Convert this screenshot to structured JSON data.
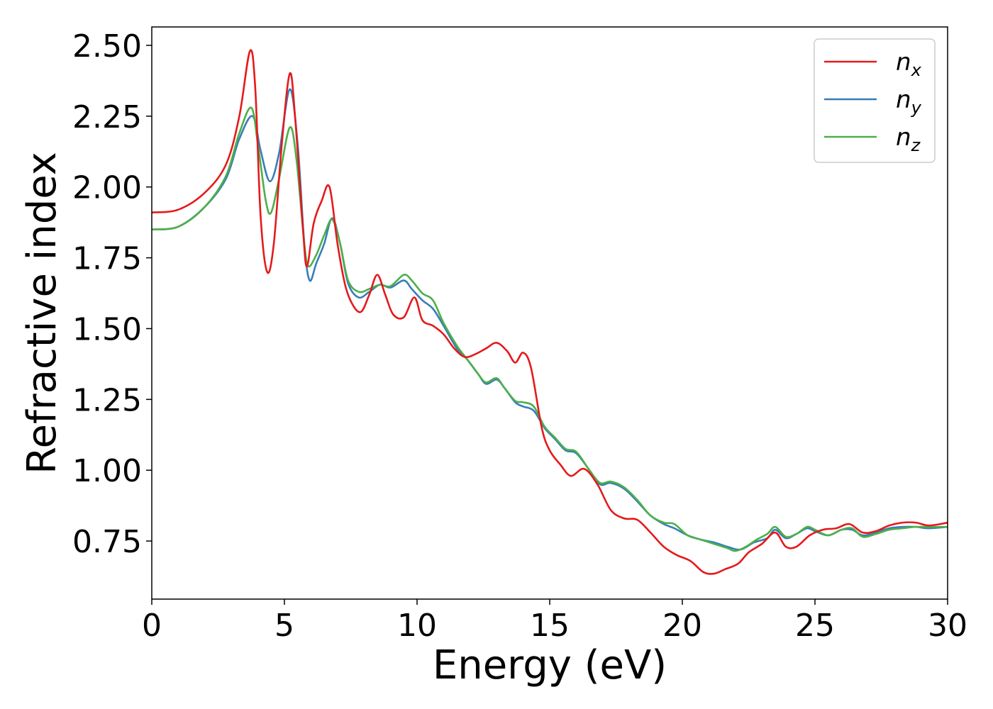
{
  "chart_data": {
    "type": "line",
    "xlabel": "Energy (eV)",
    "ylabel": "Refractive index",
    "xlim": [
      0,
      30
    ],
    "ylim": [
      0.545,
      2.565
    ],
    "xticks": [
      0,
      5,
      10,
      15,
      20,
      25,
      30
    ],
    "xtick_labels": [
      "0",
      "5",
      "10",
      "15",
      "20",
      "25",
      "30"
    ],
    "yticks": [
      0.75,
      1.0,
      1.25,
      1.5,
      1.75,
      2.0,
      2.25,
      2.5
    ],
    "ytick_labels": [
      "0.75",
      "1.00",
      "1.25",
      "1.50",
      "1.75",
      "2.00",
      "2.25",
      "2.50"
    ],
    "grid": false,
    "legend_position": "top-right",
    "series": [
      {
        "name": "n_x",
        "label_main": "n",
        "label_sub": "x",
        "color": "#e41a1c",
        "points": [
          [
            0,
            1.91
          ],
          [
            1,
            1.92
          ],
          [
            2,
            1.98
          ],
          [
            2.8,
            2.08
          ],
          [
            3.3,
            2.25
          ],
          [
            3.7,
            2.48
          ],
          [
            3.9,
            2.35
          ],
          [
            4.1,
            1.9
          ],
          [
            4.35,
            1.7
          ],
          [
            4.6,
            1.8
          ],
          [
            4.9,
            2.15
          ],
          [
            5.2,
            2.4
          ],
          [
            5.4,
            2.25
          ],
          [
            5.7,
            1.85
          ],
          [
            5.85,
            1.72
          ],
          [
            6.1,
            1.87
          ],
          [
            6.4,
            1.95
          ],
          [
            6.7,
            2.0
          ],
          [
            7.0,
            1.8
          ],
          [
            7.3,
            1.65
          ],
          [
            7.6,
            1.58
          ],
          [
            7.9,
            1.56
          ],
          [
            8.2,
            1.62
          ],
          [
            8.5,
            1.69
          ],
          [
            8.8,
            1.62
          ],
          [
            9.1,
            1.55
          ],
          [
            9.5,
            1.54
          ],
          [
            9.9,
            1.61
          ],
          [
            10.2,
            1.53
          ],
          [
            10.6,
            1.51
          ],
          [
            11.0,
            1.48
          ],
          [
            11.4,
            1.43
          ],
          [
            11.8,
            1.4
          ],
          [
            12.2,
            1.41
          ],
          [
            12.6,
            1.43
          ],
          [
            13.0,
            1.45
          ],
          [
            13.4,
            1.42
          ],
          [
            13.7,
            1.38
          ],
          [
            14.0,
            1.415
          ],
          [
            14.3,
            1.36
          ],
          [
            14.7,
            1.15
          ],
          [
            15.0,
            1.07
          ],
          [
            15.4,
            1.02
          ],
          [
            15.8,
            0.98
          ],
          [
            16.3,
            1.005
          ],
          [
            16.8,
            0.95
          ],
          [
            17.3,
            0.86
          ],
          [
            17.8,
            0.83
          ],
          [
            18.3,
            0.825
          ],
          [
            18.8,
            0.78
          ],
          [
            19.3,
            0.73
          ],
          [
            19.8,
            0.7
          ],
          [
            20.3,
            0.68
          ],
          [
            20.8,
            0.64
          ],
          [
            21.2,
            0.635
          ],
          [
            21.6,
            0.65
          ],
          [
            22.1,
            0.67
          ],
          [
            22.5,
            0.71
          ],
          [
            23.0,
            0.74
          ],
          [
            23.5,
            0.78
          ],
          [
            23.9,
            0.73
          ],
          [
            24.3,
            0.73
          ],
          [
            24.8,
            0.77
          ],
          [
            25.3,
            0.79
          ],
          [
            25.8,
            0.795
          ],
          [
            26.3,
            0.81
          ],
          [
            26.8,
            0.78
          ],
          [
            27.3,
            0.785
          ],
          [
            27.8,
            0.805
          ],
          [
            28.3,
            0.815
          ],
          [
            28.8,
            0.815
          ],
          [
            29.3,
            0.805
          ],
          [
            30,
            0.815
          ]
        ]
      },
      {
        "name": "n_y",
        "label_main": "n",
        "label_sub": "y",
        "color": "#377eb8",
        "points": [
          [
            0,
            1.85
          ],
          [
            1,
            1.86
          ],
          [
            2,
            1.93
          ],
          [
            2.8,
            2.03
          ],
          [
            3.3,
            2.17
          ],
          [
            3.8,
            2.25
          ],
          [
            4.1,
            2.13
          ],
          [
            4.45,
            2.02
          ],
          [
            4.8,
            2.12
          ],
          [
            5.2,
            2.345
          ],
          [
            5.5,
            2.15
          ],
          [
            5.75,
            1.8
          ],
          [
            5.95,
            1.67
          ],
          [
            6.2,
            1.73
          ],
          [
            6.5,
            1.8
          ],
          [
            6.8,
            1.89
          ],
          [
            7.1,
            1.8
          ],
          [
            7.4,
            1.66
          ],
          [
            7.8,
            1.61
          ],
          [
            8.2,
            1.63
          ],
          [
            8.6,
            1.655
          ],
          [
            9.0,
            1.645
          ],
          [
            9.5,
            1.67
          ],
          [
            9.8,
            1.64
          ],
          [
            10.2,
            1.6
          ],
          [
            10.6,
            1.57
          ],
          [
            11.0,
            1.51
          ],
          [
            11.5,
            1.43
          ],
          [
            11.9,
            1.39
          ],
          [
            12.3,
            1.34
          ],
          [
            12.6,
            1.305
          ],
          [
            13.0,
            1.32
          ],
          [
            13.3,
            1.29
          ],
          [
            13.7,
            1.24
          ],
          [
            14.0,
            1.225
          ],
          [
            14.4,
            1.21
          ],
          [
            14.8,
            1.15
          ],
          [
            15.2,
            1.11
          ],
          [
            15.6,
            1.07
          ],
          [
            16.0,
            1.06
          ],
          [
            16.5,
            1.0
          ],
          [
            16.9,
            0.95
          ],
          [
            17.3,
            0.955
          ],
          [
            17.8,
            0.935
          ],
          [
            18.3,
            0.89
          ],
          [
            18.8,
            0.84
          ],
          [
            19.3,
            0.81
          ],
          [
            19.7,
            0.795
          ],
          [
            20.2,
            0.77
          ],
          [
            20.7,
            0.755
          ],
          [
            21.2,
            0.745
          ],
          [
            21.7,
            0.73
          ],
          [
            22.2,
            0.72
          ],
          [
            22.7,
            0.745
          ],
          [
            23.2,
            0.76
          ],
          [
            23.5,
            0.79
          ],
          [
            23.9,
            0.76
          ],
          [
            24.3,
            0.775
          ],
          [
            24.7,
            0.795
          ],
          [
            25.0,
            0.785
          ],
          [
            25.5,
            0.77
          ],
          [
            26.0,
            0.79
          ],
          [
            26.4,
            0.79
          ],
          [
            26.8,
            0.77
          ],
          [
            27.3,
            0.78
          ],
          [
            27.8,
            0.795
          ],
          [
            28.3,
            0.8
          ],
          [
            28.8,
            0.8
          ],
          [
            29.3,
            0.795
          ],
          [
            30,
            0.8
          ]
        ]
      },
      {
        "name": "n_z",
        "label_main": "n",
        "label_sub": "z",
        "color": "#4daf4a",
        "points": [
          [
            0,
            1.85
          ],
          [
            1,
            1.86
          ],
          [
            2,
            1.93
          ],
          [
            2.8,
            2.04
          ],
          [
            3.3,
            2.19
          ],
          [
            3.75,
            2.28
          ],
          [
            4.0,
            2.15
          ],
          [
            4.3,
            1.95
          ],
          [
            4.5,
            1.91
          ],
          [
            4.8,
            2.03
          ],
          [
            5.2,
            2.21
          ],
          [
            5.45,
            2.1
          ],
          [
            5.75,
            1.8
          ],
          [
            5.9,
            1.72
          ],
          [
            6.2,
            1.76
          ],
          [
            6.5,
            1.83
          ],
          [
            6.8,
            1.885
          ],
          [
            7.1,
            1.8
          ],
          [
            7.4,
            1.67
          ],
          [
            7.8,
            1.63
          ],
          [
            8.2,
            1.64
          ],
          [
            8.6,
            1.655
          ],
          [
            9.0,
            1.65
          ],
          [
            9.5,
            1.69
          ],
          [
            9.8,
            1.67
          ],
          [
            10.2,
            1.625
          ],
          [
            10.6,
            1.6
          ],
          [
            11.0,
            1.52
          ],
          [
            11.5,
            1.44
          ],
          [
            11.9,
            1.39
          ],
          [
            12.3,
            1.34
          ],
          [
            12.6,
            1.31
          ],
          [
            13.0,
            1.325
          ],
          [
            13.3,
            1.29
          ],
          [
            13.7,
            1.245
          ],
          [
            14.0,
            1.24
          ],
          [
            14.4,
            1.225
          ],
          [
            14.8,
            1.155
          ],
          [
            15.2,
            1.115
          ],
          [
            15.6,
            1.075
          ],
          [
            16.0,
            1.065
          ],
          [
            16.5,
            1.0
          ],
          [
            16.9,
            0.955
          ],
          [
            17.3,
            0.96
          ],
          [
            17.8,
            0.94
          ],
          [
            18.3,
            0.895
          ],
          [
            18.8,
            0.84
          ],
          [
            19.3,
            0.815
          ],
          [
            19.7,
            0.81
          ],
          [
            20.2,
            0.77
          ],
          [
            20.7,
            0.755
          ],
          [
            21.2,
            0.74
          ],
          [
            21.7,
            0.725
          ],
          [
            22.0,
            0.715
          ],
          [
            22.4,
            0.73
          ],
          [
            22.8,
            0.755
          ],
          [
            23.2,
            0.775
          ],
          [
            23.5,
            0.8
          ],
          [
            23.9,
            0.765
          ],
          [
            24.3,
            0.775
          ],
          [
            24.7,
            0.8
          ],
          [
            25.0,
            0.79
          ],
          [
            25.5,
            0.77
          ],
          [
            26.0,
            0.79
          ],
          [
            26.4,
            0.795
          ],
          [
            26.8,
            0.765
          ],
          [
            27.3,
            0.775
          ],
          [
            27.8,
            0.79
          ],
          [
            28.3,
            0.795
          ],
          [
            28.8,
            0.8
          ],
          [
            29.3,
            0.8
          ],
          [
            30,
            0.8
          ]
        ]
      }
    ]
  }
}
